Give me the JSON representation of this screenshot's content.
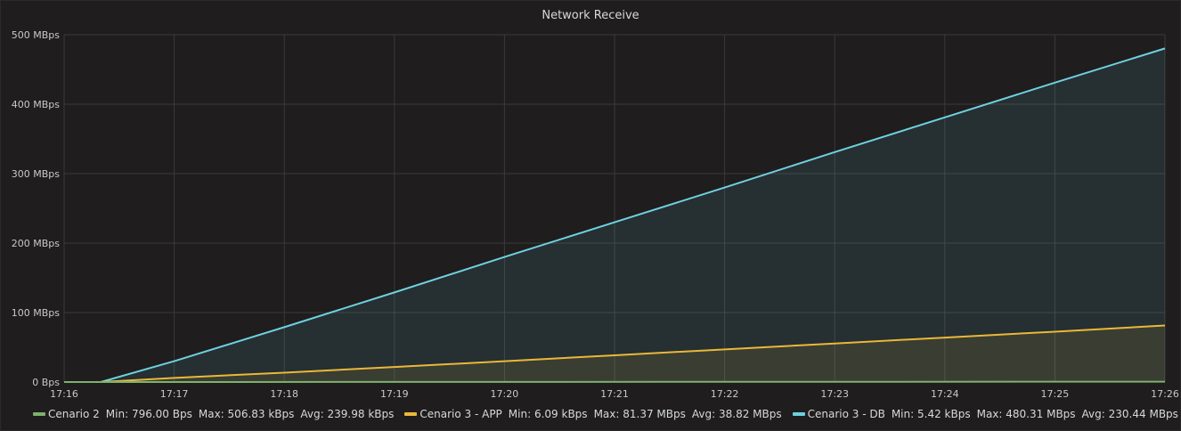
{
  "panel": {
    "title": "Network Receive"
  },
  "colors": {
    "background": "#1f1d1d",
    "grid": "#3a3a3c",
    "axis_text": "#c8c9ca",
    "green": "#7eb26d",
    "yellow": "#eab839",
    "cyan": "#6ed0e0"
  },
  "chart_data": {
    "type": "area",
    "title": "Network Receive",
    "xlabel": "",
    "ylabel": "",
    "x_ticks": [
      "17:16",
      "17:17",
      "17:18",
      "17:19",
      "17:20",
      "17:21",
      "17:22",
      "17:23",
      "17:24",
      "17:25",
      "17:26"
    ],
    "y_ticks": [
      "0 Bps",
      "100 MBps",
      "200 MBps",
      "300 MBps",
      "400 MBps",
      "500 MBps"
    ],
    "ylim": [
      0,
      500
    ],
    "y_unit": "MBps",
    "xlim_minutes": [
      "17:16",
      "17:26"
    ],
    "grid": true,
    "legend_position": "bottom",
    "series": [
      {
        "name": "Cenario 2",
        "color": "#7eb26d",
        "fill": false,
        "x": [
          "17:16",
          "17:16:20",
          "17:26"
        ],
        "y": [
          0,
          0,
          0.5
        ],
        "legend_stats": {
          "min_label": "Min:",
          "min": "796.00 Bps",
          "max_label": "Max:",
          "max": "506.83 kBps",
          "avg_label": "Avg:",
          "avg": "239.98 kBps"
        }
      },
      {
        "name": "Cenario 3 - APP",
        "color": "#eab839",
        "fill": true,
        "x": [
          "17:16",
          "17:16:20",
          "17:17",
          "17:18",
          "17:19",
          "17:20",
          "17:21",
          "17:22",
          "17:23",
          "17:24",
          "17:25",
          "17:26"
        ],
        "y": [
          0,
          0,
          6,
          13.5,
          21.6,
          30,
          38.5,
          47,
          55.5,
          64,
          72.5,
          81.37
        ],
        "legend_stats": {
          "min_label": "Min:",
          "min": "6.09 kBps",
          "max_label": "Max:",
          "max": "81.37 MBps",
          "avg_label": "Avg:",
          "avg": "38.82 MBps"
        }
      },
      {
        "name": "Cenario 3 - DB",
        "color": "#6ed0e0",
        "fill": true,
        "x": [
          "17:16",
          "17:16:20",
          "17:17",
          "17:18",
          "17:19",
          "17:20",
          "17:21",
          "17:22",
          "17:23",
          "17:24",
          "17:25",
          "17:26"
        ],
        "y": [
          0,
          0,
          30,
          79,
          129,
          180,
          230,
          280,
          331,
          381,
          431,
          480.31
        ],
        "legend_stats": {
          "min_label": "Min:",
          "min": "5.42 kBps",
          "max_label": "Max:",
          "max": "480.31 MBps",
          "avg_label": "Avg:",
          "avg": "230.44 MBps"
        }
      }
    ]
  }
}
